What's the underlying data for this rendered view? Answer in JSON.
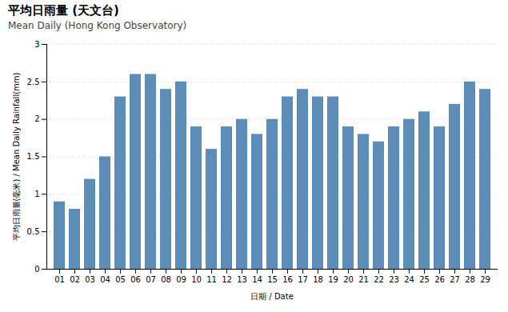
{
  "chart_data": {
    "type": "bar",
    "title": "平均日雨量 (天文台)",
    "subtitle": "Mean Daily (Hong Kong Observatory)",
    "x_label": "日期 / Date",
    "y_label": "平均日雨量(毫米) / Mean Daily Rainfall(mm)",
    "categories": [
      "01",
      "02",
      "03",
      "04",
      "05",
      "06",
      "07",
      "08",
      "09",
      "10",
      "11",
      "12",
      "13",
      "14",
      "15",
      "16",
      "17",
      "18",
      "19",
      "20",
      "21",
      "22",
      "23",
      "24",
      "25",
      "26",
      "27",
      "28",
      "29"
    ],
    "values": [
      0.9,
      0.8,
      1.2,
      1.5,
      2.3,
      2.6,
      2.6,
      2.4,
      2.5,
      1.9,
      1.6,
      1.9,
      2.0,
      1.8,
      2.0,
      2.3,
      2.4,
      2.3,
      2.3,
      1.9,
      1.8,
      1.7,
      1.9,
      2.0,
      2.1,
      1.9,
      2.2,
      2.5,
      2.4
    ],
    "color": "#5b8db8",
    "ylim": [
      0,
      3.0
    ],
    "yticks": [
      0,
      0.5,
      1,
      1.5,
      2,
      2.5,
      3
    ],
    "grid": true
  }
}
